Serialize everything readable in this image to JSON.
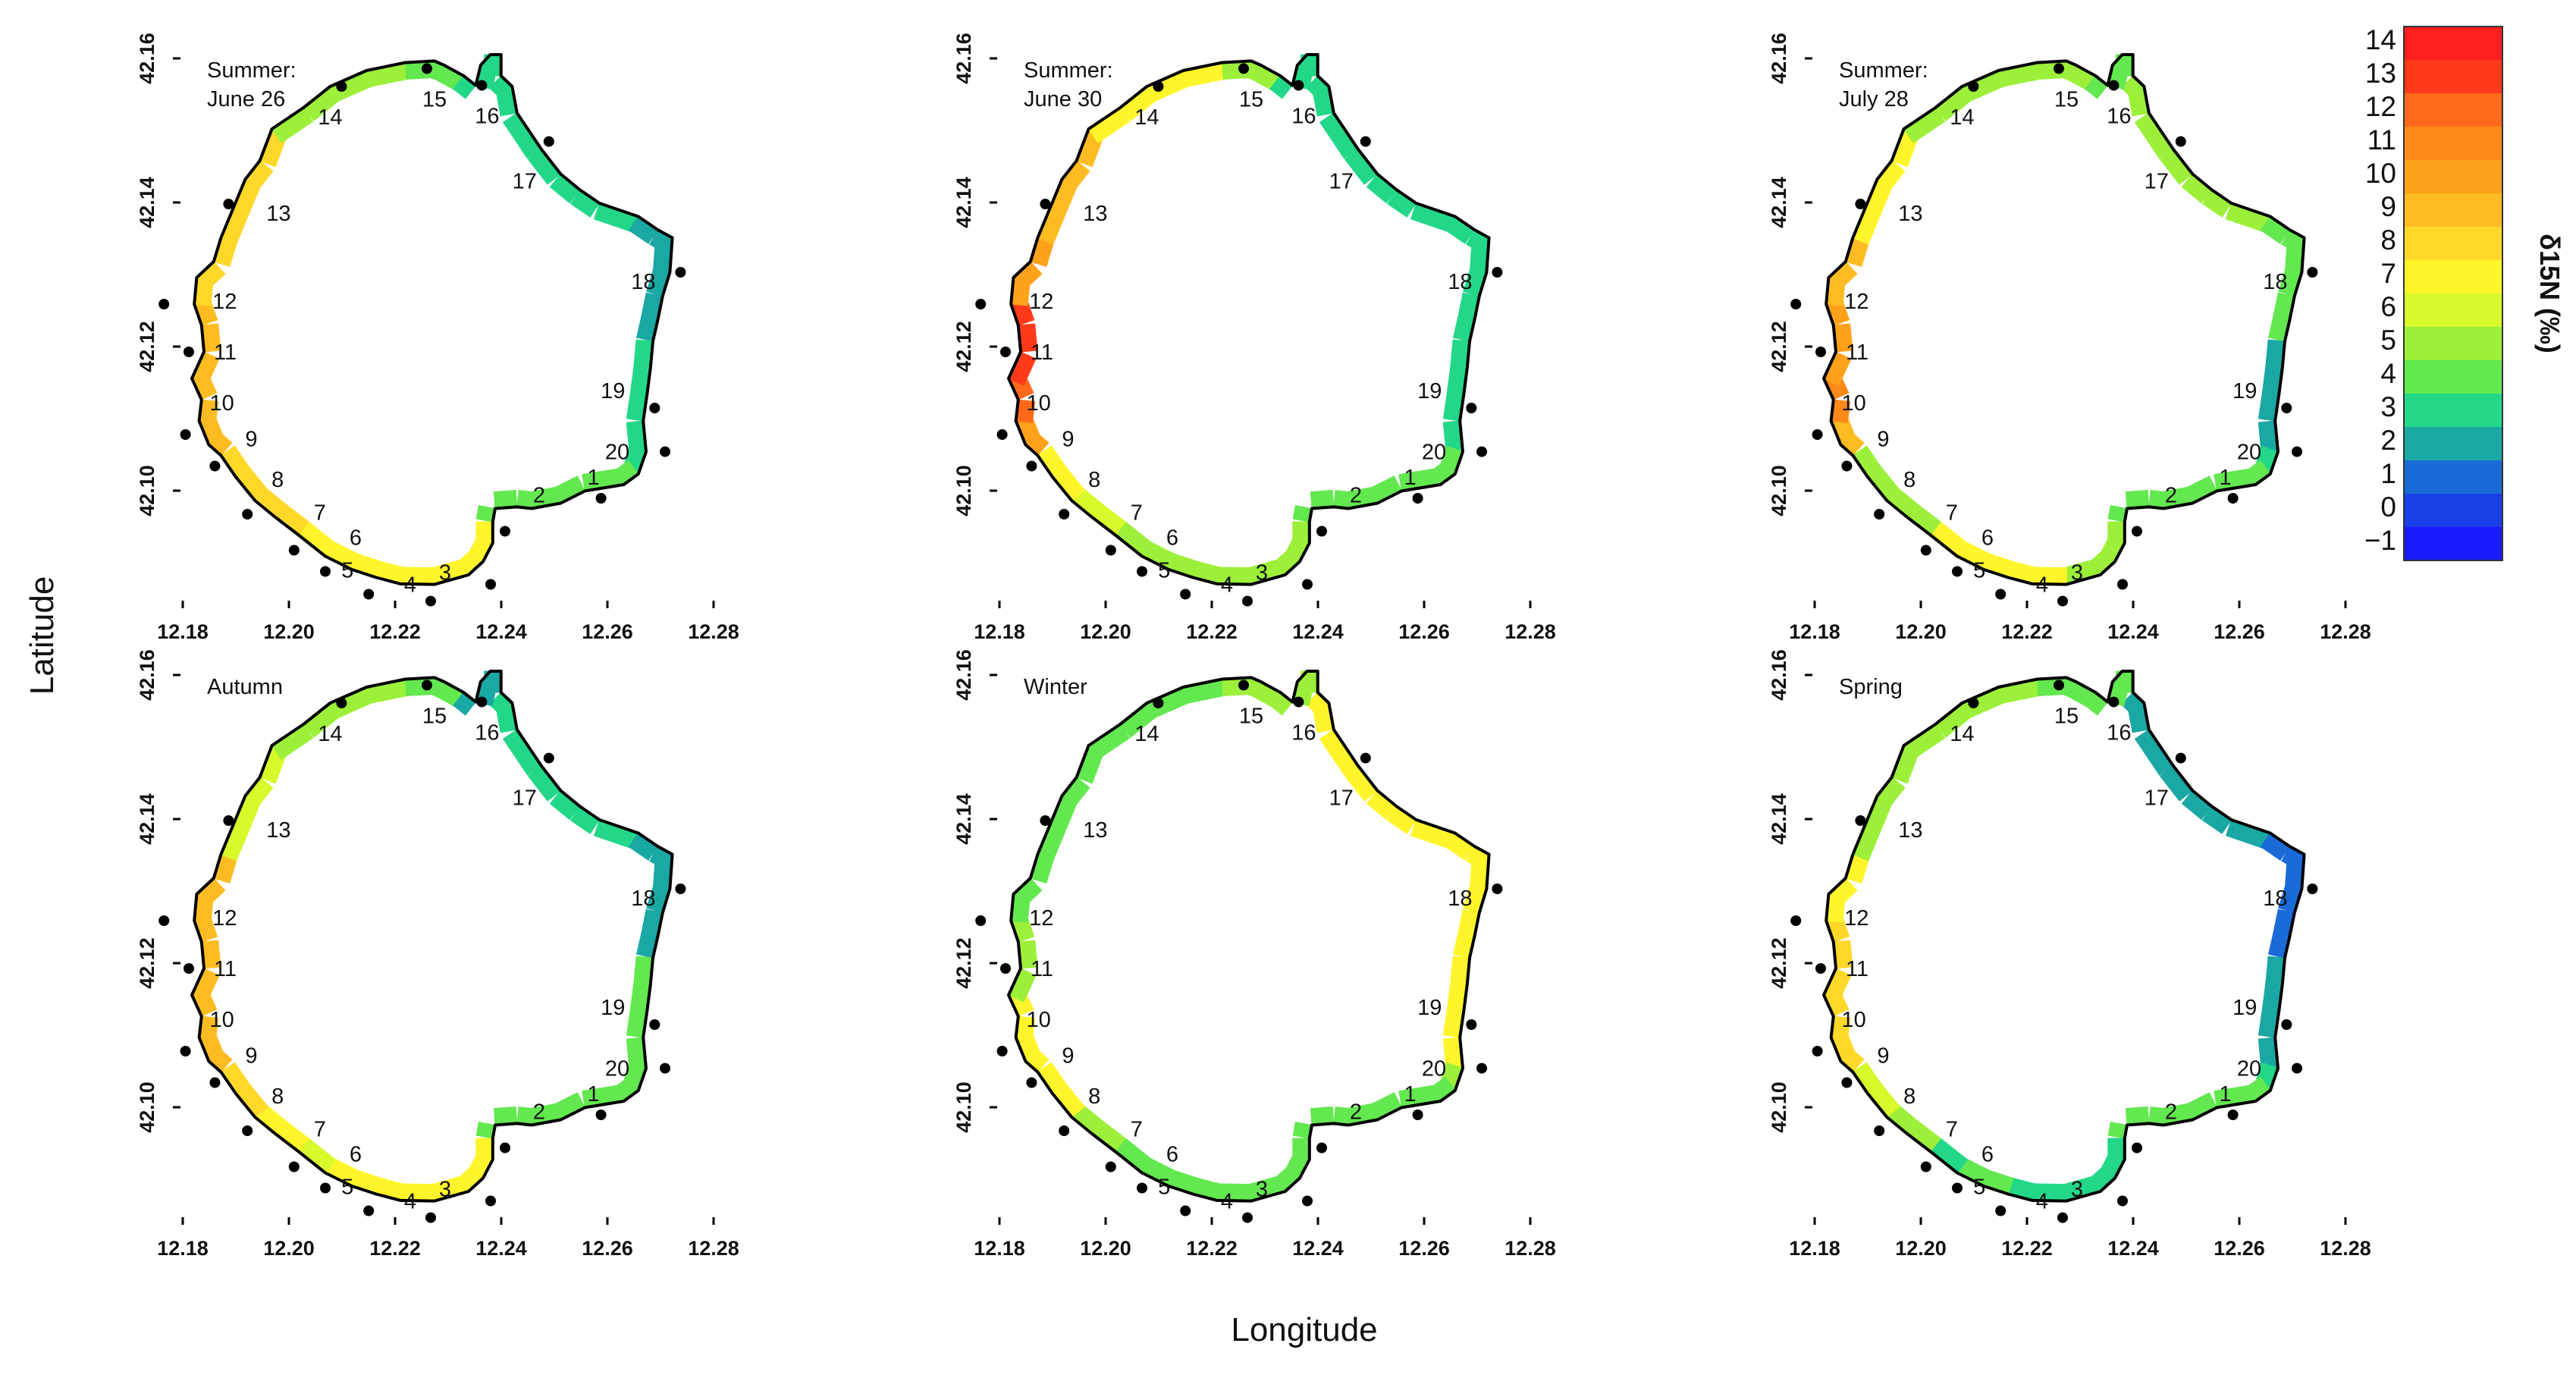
{
  "chart_data": {
    "type": "map-panels",
    "xlabel": "Longitude",
    "ylabel": "Latitude",
    "colorbar": {
      "title": "δ15N (‰)",
      "labels": [
        "14",
        "13",
        "12",
        "11",
        "10",
        "9",
        "8",
        "7",
        "6",
        "5",
        "4",
        "3",
        "2",
        "1",
        "0",
        "−1"
      ],
      "values": [
        14,
        13,
        12,
        11,
        10,
        9,
        8,
        7,
        6,
        5,
        4,
        3,
        2,
        1,
        0,
        -1
      ],
      "colors": [
        "#ff1f1f",
        "#ff3a1a",
        "#ff6a1a",
        "#ff8a1a",
        "#ffa21a",
        "#ffbc22",
        "#ffd82a",
        "#fff52a",
        "#d8fa2a",
        "#9cf03a",
        "#63e850",
        "#22d888",
        "#1aa8a4",
        "#1a6bd8",
        "#1a3fe8",
        "#1a1aff"
      ]
    },
    "x_ticks": [
      "12.18",
      "12.20",
      "12.22",
      "12.24",
      "12.26",
      "12.28"
    ],
    "y_ticks": [
      "42.10",
      "42.12",
      "42.14",
      "42.16"
    ],
    "site_numbers": [
      "1",
      "2",
      "3",
      "4",
      "5",
      "6",
      "7",
      "8",
      "9",
      "10",
      "11",
      "12",
      "13",
      "14",
      "15",
      "16",
      "17",
      "18",
      "19",
      "20"
    ],
    "panels": [
      {
        "title_lines": [
          "Summer:",
          "June 26"
        ],
        "site_values": [
          3.5,
          3.5,
          6.5,
          6.5,
          7.0,
          7.0,
          7.5,
          8.0,
          8.5,
          8.5,
          8.5,
          8.0,
          7.5,
          5.0,
          4.0,
          3.0,
          2.5,
          1.8,
          2.5,
          3.0
        ]
      },
      {
        "title_lines": [
          "Summer:",
          "June 30"
        ],
        "site_values": [
          3.5,
          3.5,
          4.5,
          5.0,
          5.0,
          5.0,
          5.5,
          7.0,
          9.5,
          11.5,
          12.5,
          10.0,
          8.5,
          6.5,
          4.5,
          2.5,
          3.0,
          3.0,
          3.0,
          3.5
        ]
      },
      {
        "title_lines": [
          "Summer:",
          "July 28"
        ],
        "site_values": [
          3.5,
          3.5,
          5.0,
          6.5,
          7.0,
          6.5,
          5.0,
          4.5,
          8.5,
          11.0,
          10.0,
          9.0,
          7.0,
          5.0,
          4.5,
          4.0,
          5.0,
          4.0,
          2.0,
          3.0
        ]
      },
      {
        "title_lines": [
          "Autumn"
        ],
        "site_values": [
          3.5,
          3.5,
          6.5,
          7.0,
          7.0,
          6.0,
          7.0,
          8.0,
          8.5,
          8.5,
          8.5,
          8.5,
          5.5,
          5.0,
          4.0,
          1.8,
          3.0,
          2.0,
          3.5,
          4.0
        ]
      },
      {
        "title_lines": [
          "Winter"
        ],
        "site_values": [
          3.5,
          3.5,
          3.5,
          3.5,
          3.5,
          4.0,
          5.0,
          6.5,
          7.0,
          7.0,
          5.0,
          4.0,
          3.5,
          4.0,
          5.0,
          5.0,
          6.5,
          7.0,
          6.5,
          5.0
        ]
      },
      {
        "title_lines": [
          "Spring"
        ],
        "site_values": [
          3.5,
          3.5,
          3.0,
          3.0,
          3.5,
          3.0,
          4.5,
          6.0,
          7.5,
          7.5,
          7.5,
          7.0,
          5.0,
          5.0,
          3.5,
          3.5,
          1.5,
          0.5,
          2.0,
          3.0
        ]
      }
    ]
  }
}
